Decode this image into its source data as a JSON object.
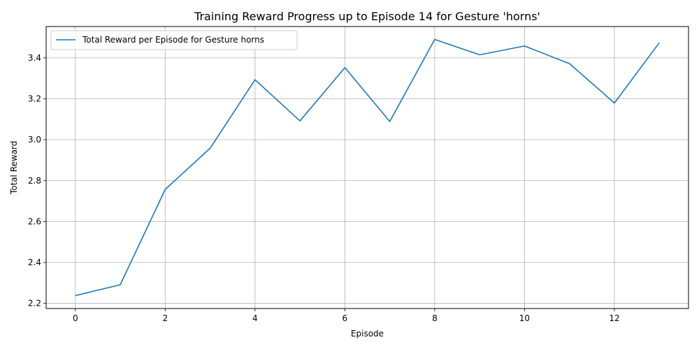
{
  "chart_data": {
    "type": "line",
    "title": "Training Reward Progress up to Episode 14 for Gesture 'horns'",
    "xlabel": "Episode",
    "ylabel": "Total Reward",
    "xlim": [
      -0.65,
      13.65
    ],
    "ylim": [
      2.175,
      3.553
    ],
    "x_ticks": [
      0,
      2,
      4,
      6,
      8,
      10,
      12
    ],
    "y_ticks": [
      2.2,
      2.4,
      2.6,
      2.8,
      3.0,
      3.2,
      3.4
    ],
    "y_tick_labels": [
      "2.2",
      "2.4",
      "2.6",
      "2.8",
      "3.0",
      "3.2",
      "3.4"
    ],
    "grid": true,
    "legend_position": "top-left",
    "series": [
      {
        "name": "Total Reward per Episode for Gesture horns",
        "color": "#1f77b4",
        "x": [
          0,
          1,
          2,
          3,
          4,
          5,
          6,
          7,
          8,
          9,
          10,
          11,
          12,
          13
        ],
        "y": [
          2.238,
          2.291,
          2.757,
          2.958,
          3.293,
          3.092,
          3.352,
          3.089,
          3.49,
          3.415,
          3.458,
          3.372,
          3.179,
          3.474
        ]
      }
    ]
  }
}
